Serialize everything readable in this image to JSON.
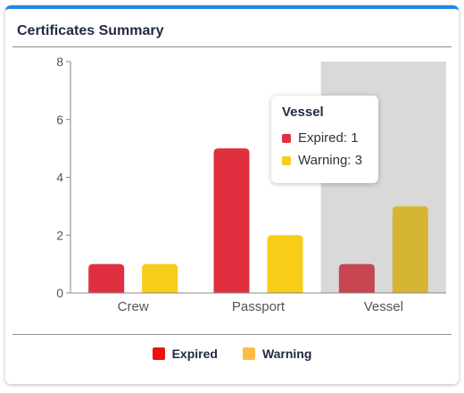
{
  "card": {
    "title": "Certificates Summary"
  },
  "chart_data": {
    "type": "bar",
    "categories": [
      "Crew",
      "Passport",
      "Vessel"
    ],
    "series": [
      {
        "name": "Expired",
        "values": [
          1,
          5,
          1
        ],
        "color": "#e0303f"
      },
      {
        "name": "Warning",
        "values": [
          1,
          2,
          3
        ],
        "color": "#f7cd18"
      }
    ],
    "ylim": [
      0,
      8
    ],
    "yticks": [
      0,
      2,
      4,
      6,
      8
    ],
    "highlighted_category": "Vessel",
    "highlight_colors": {
      "Expired": "#c84552",
      "Warning": "#d6b535"
    }
  },
  "tooltip": {
    "title": "Vessel",
    "items": [
      {
        "text": "Expired: 1",
        "color": "#e0303f"
      },
      {
        "text": "Warning: 3",
        "color": "#f7cd18"
      }
    ]
  },
  "legend": {
    "items": [
      {
        "label": "Expired",
        "color": "#ee1111"
      },
      {
        "label": "Warning",
        "color": "#ffbb44"
      }
    ]
  }
}
